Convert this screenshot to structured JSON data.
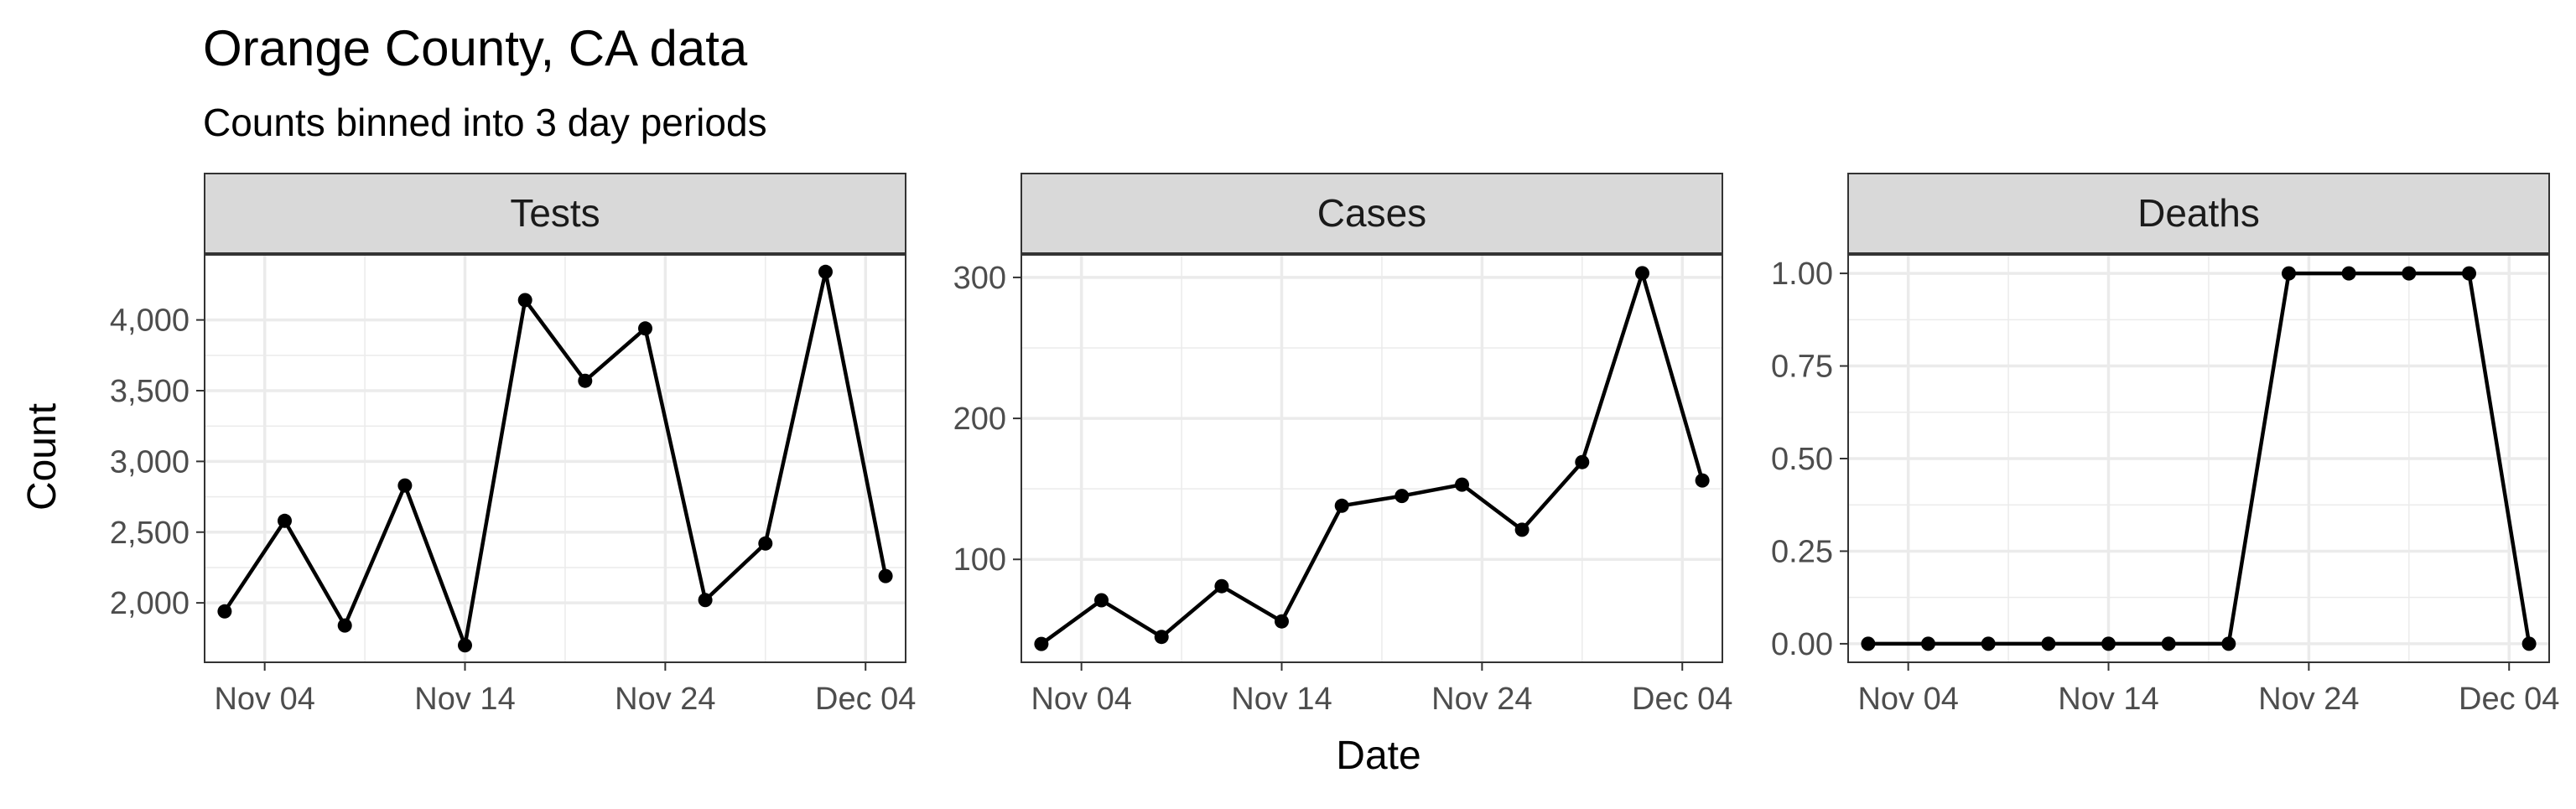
{
  "title": "Orange County, CA data",
  "subtitle": "Counts binned into 3 day periods",
  "xlabel": "Date",
  "ylabel": "Count",
  "chart_data": [
    {
      "type": "line",
      "panel": "Tests",
      "x": [
        "2020-11-02",
        "2020-11-05",
        "2020-11-08",
        "2020-11-11",
        "2020-11-14",
        "2020-11-17",
        "2020-11-20",
        "2020-11-23",
        "2020-11-26",
        "2020-11-29",
        "2020-12-02",
        "2020-12-05"
      ],
      "values": [
        1940,
        2580,
        1840,
        2830,
        1700,
        4140,
        3570,
        3940,
        2020,
        2420,
        4340,
        2190
      ],
      "ylim": [
        1580,
        4460
      ],
      "yticks": [
        2000,
        2500,
        3000,
        3500,
        4000
      ],
      "ytick_labels": [
        "2,000",
        "2,500",
        "3,000",
        "3,500",
        "4,000"
      ]
    },
    {
      "type": "line",
      "panel": "Cases",
      "x": [
        "2020-11-02",
        "2020-11-05",
        "2020-11-08",
        "2020-11-11",
        "2020-11-14",
        "2020-11-17",
        "2020-11-20",
        "2020-11-23",
        "2020-11-26",
        "2020-11-29",
        "2020-12-02",
        "2020-12-05"
      ],
      "values": [
        40,
        71,
        45,
        81,
        56,
        138,
        145,
        153,
        121,
        169,
        303,
        156
      ],
      "ylim": [
        27,
        316
      ],
      "yticks": [
        100,
        200,
        300
      ],
      "ytick_labels": [
        "100",
        "200",
        "300"
      ]
    },
    {
      "type": "line",
      "panel": "Deaths",
      "x": [
        "2020-11-02",
        "2020-11-05",
        "2020-11-08",
        "2020-11-11",
        "2020-11-14",
        "2020-11-17",
        "2020-11-20",
        "2020-11-23",
        "2020-11-26",
        "2020-11-29",
        "2020-12-02",
        "2020-12-05"
      ],
      "values": [
        0,
        0,
        0,
        0,
        0,
        0,
        0,
        1,
        1,
        1,
        1,
        0
      ],
      "ylim": [
        -0.05,
        1.05
      ],
      "yticks": [
        0,
        0.25,
        0.5,
        0.75,
        1
      ],
      "ytick_labels": [
        "0.00",
        "0.25",
        "0.50",
        "0.75",
        "1.00"
      ]
    }
  ],
  "xlim": [
    "2020-11-01",
    "2020-12-06"
  ],
  "xticks": [
    "2020-11-04",
    "2020-11-14",
    "2020-11-24",
    "2020-12-04"
  ],
  "xtick_labels": [
    "Nov 04",
    "Nov 14",
    "Nov 24",
    "Dec 04"
  ],
  "grid": true,
  "colors": {
    "line": "#000000",
    "strip": "#d9d9d9",
    "grid": "#ebebeb",
    "panel_border": "#333333"
  }
}
